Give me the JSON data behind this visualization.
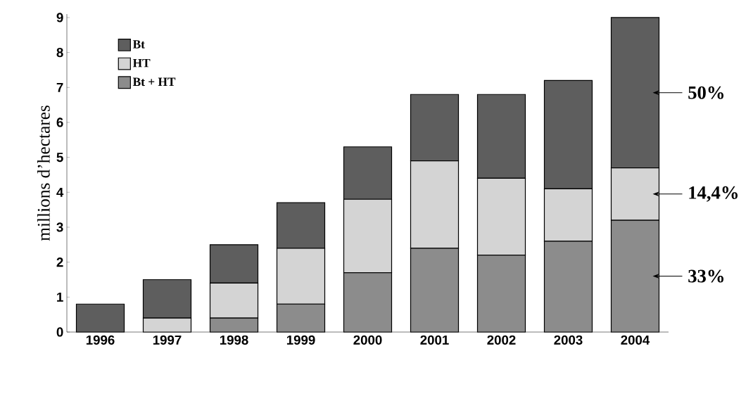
{
  "chart_data": {
    "type": "bar",
    "stacked": true,
    "ylabel": "millions d’hectares",
    "categories": [
      "1996",
      "1997",
      "1998",
      "1999",
      "2000",
      "2001",
      "2002",
      "2003",
      "2004"
    ],
    "series": [
      {
        "name": "Bt + HT",
        "color": "#8c8c8c",
        "values": [
          0,
          0,
          0.4,
          0.8,
          1.7,
          2.4,
          2.2,
          2.6,
          3.2
        ]
      },
      {
        "name": "HT",
        "color": "#d4d4d4",
        "values": [
          0,
          0.4,
          1.0,
          1.6,
          2.1,
          2.5,
          2.2,
          1.5,
          1.5
        ]
      },
      {
        "name": "Bt",
        "color": "#5e5e5e",
        "values": [
          0.8,
          1.1,
          1.1,
          1.3,
          1.5,
          1.9,
          2.4,
          3.1,
          4.3
        ]
      }
    ],
    "ylim": [
      0,
      9.1
    ],
    "yticks": [
      0,
      1,
      2,
      3,
      4,
      5,
      6,
      7,
      8,
      9
    ],
    "grid": false,
    "legend": "top left",
    "annotations": [
      "33%",
      "14,4%",
      "50%"
    ]
  }
}
